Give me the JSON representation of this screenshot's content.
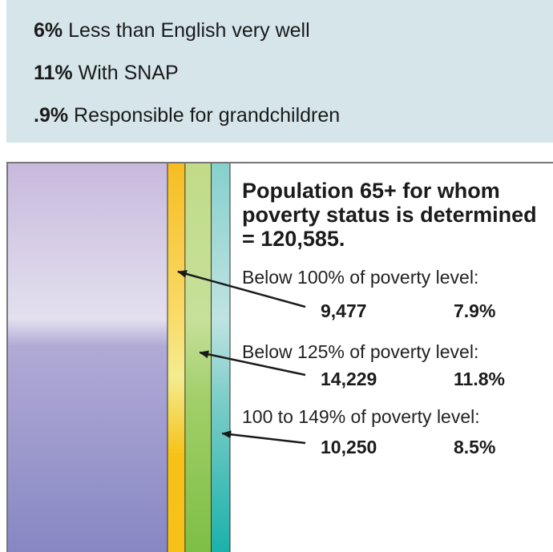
{
  "stats": [
    {
      "value": "6%",
      "label": "Less than English very well"
    },
    {
      "value": "11%",
      "label": "With SNAP"
    },
    {
      "value": ".9%",
      "label": "Responsible for grandchildren"
    }
  ],
  "chart_data": {
    "type": "bar",
    "title": "Population 65+ for whom poverty status is determined = 120,585.",
    "total": 120585,
    "series": [
      {
        "name": "Below 100% of poverty level:",
        "count_label": "9,477",
        "percent_label": "7.9%",
        "count": 9477,
        "percent": 7.9,
        "color": "#f6c01a"
      },
      {
        "name": "Below 125% of poverty level:",
        "count_label": "14,229",
        "percent_label": "11.8%",
        "count": 14229,
        "percent": 11.8,
        "color": "#8cc34a"
      },
      {
        "name": "100 to 149% of poverty level:",
        "count_label": "10,250",
        "percent_label": "8.5%",
        "count": 10250,
        "percent": 8.5,
        "color": "#2bb3b3"
      }
    ],
    "remainder_color": "#9a8fc8"
  }
}
